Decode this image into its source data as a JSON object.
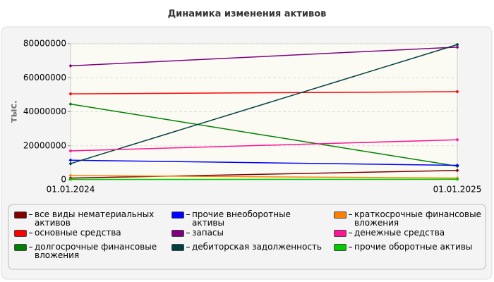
{
  "chart_data": {
    "type": "line",
    "title": "Динамика изменения активов",
    "y_label": "тыс.",
    "x": [
      "01.01.2024",
      "01.01.2025"
    ],
    "ylim": [
      0,
      80000000
    ],
    "yticks": [
      0,
      20000000,
      40000000,
      60000000,
      80000000
    ],
    "grid": true,
    "series": [
      {
        "name": "все виды нематериальных активов",
        "color": "#800000",
        "values": [
          1000000,
          5500000
        ]
      },
      {
        "name": "основные средства",
        "color": "#ff0000",
        "values": [
          50500000,
          51800000
        ]
      },
      {
        "name": "долгосрочные финансовые вложения",
        "color": "#008000",
        "values": [
          44500000,
          8000000
        ]
      },
      {
        "name": "прочие внеоборотные активы",
        "color": "#0000ff",
        "values": [
          11500000,
          8500000
        ]
      },
      {
        "name": "запасы",
        "color": "#800080",
        "values": [
          67000000,
          78000000
        ]
      },
      {
        "name": "дебиторская задолженность",
        "color": "#004040",
        "values": [
          9500000,
          79500000
        ]
      },
      {
        "name": "краткосрочные финансовые вложения",
        "color": "#ff8000",
        "values": [
          2500000,
          1000000
        ]
      },
      {
        "name": "денежные средства",
        "color": "#ff1493",
        "values": [
          17000000,
          23500000
        ]
      },
      {
        "name": "прочие оборотные активы",
        "color": "#00cc00",
        "values": [
          200000,
          300000
        ]
      }
    ]
  }
}
